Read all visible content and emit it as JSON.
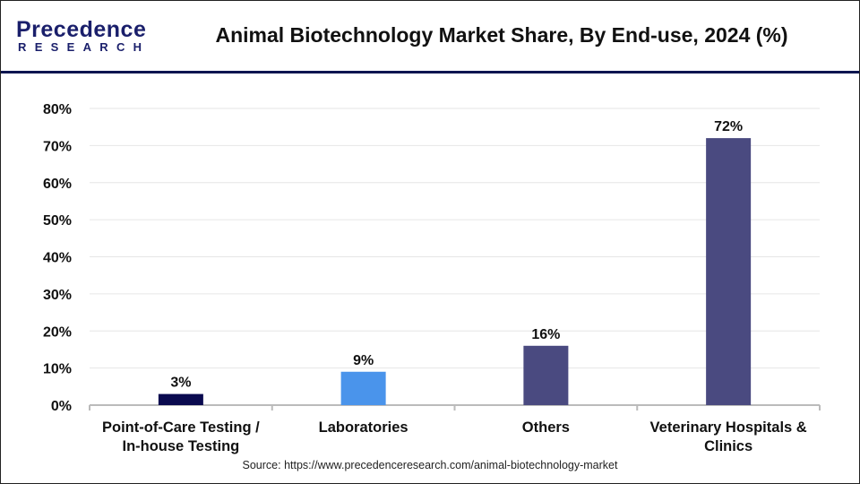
{
  "header": {
    "logo_text": "Precedence RESEARCH",
    "logo_top": "Precedence",
    "logo_bottom": "RESEARCH",
    "title": "Animal Biotechnology Market Share, By End-use, 2024 (%)"
  },
  "source": "Source: https://www.precedenceresearch.com/animal-biotechnology-market",
  "chart_data": {
    "type": "bar",
    "title": "Animal Biotechnology Market Share, By End-use, 2024 (%)",
    "categories": [
      [
        "Point-of-Care Testing /",
        "In-house Testing"
      ],
      [
        "Laboratories"
      ],
      [
        "Others"
      ],
      [
        "Veterinary Hospitals &",
        "Clinics"
      ]
    ],
    "values": [
      3,
      9,
      16,
      72
    ],
    "data_labels": [
      "3%",
      "9%",
      "16%",
      "72%"
    ],
    "colors": [
      "#0a0a4f",
      "#4a94eb",
      "#4a4a80",
      "#4a4a80"
    ],
    "ylim": [
      0,
      80
    ],
    "yticks": [
      0,
      10,
      20,
      30,
      40,
      50,
      60,
      70,
      80
    ],
    "ytick_labels": [
      "0%",
      "10%",
      "20%",
      "30%",
      "40%",
      "50%",
      "60%",
      "70%",
      "80%"
    ],
    "grid": true,
    "xlabel": "",
    "ylabel": ""
  }
}
